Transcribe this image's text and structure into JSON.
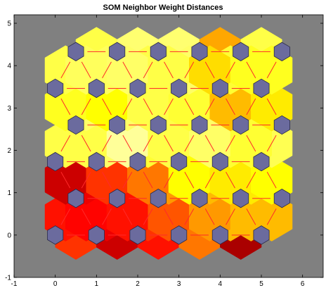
{
  "chart_data": {
    "type": "heatmap",
    "subtype": "som-neighbor-distances",
    "title": "SOM Neighbor Weight Distances",
    "xlabel": "",
    "ylabel": "",
    "xlim": [
      -1,
      6.5
    ],
    "ylim": [
      -1,
      5.2
    ],
    "xticks": [
      -1,
      0,
      1,
      2,
      3,
      4,
      5,
      6
    ],
    "yticks": [
      -1,
      0,
      1,
      2,
      3,
      4,
      5
    ],
    "grid": false,
    "colors": {
      "background": "#808080",
      "neuron": "#6b6b9e",
      "edge": "#ff2a2a",
      "colormap": "hot"
    },
    "grid_size": [
      6,
      5
    ],
    "neuron_rows": [
      {
        "y": 0,
        "x": [
          0,
          1,
          2,
          3,
          4,
          5
        ]
      },
      {
        "y": 0.866,
        "x": [
          0.5,
          1.5,
          2.5,
          3.5,
          4.5,
          5.5
        ]
      },
      {
        "y": 1.732,
        "x": [
          0,
          1,
          2,
          3,
          4,
          5
        ]
      },
      {
        "y": 2.598,
        "x": [
          0.5,
          1.5,
          2.5,
          3.5,
          4.5,
          5.5
        ]
      },
      {
        "y": 3.464,
        "x": [
          0,
          1,
          2,
          3,
          4,
          5
        ]
      },
      {
        "y": 4.33,
        "x": [
          0.5,
          1.5,
          2.5,
          3.5,
          4.5,
          5.5
        ]
      }
    ],
    "edge_level_scale": "0 = black (largest distance), 1 = white (smallest distance)",
    "horizontal_edges": [
      [
        0.45,
        0.3,
        0.4,
        0.55,
        0.25
      ],
      [
        0.35,
        0.55,
        0.6,
        0.7,
        0.75
      ],
      [
        0.75,
        0.78,
        0.82,
        0.78,
        0.8
      ],
      [
        0.8,
        0.78,
        0.75,
        0.8,
        0.83
      ],
      [
        0.73,
        0.85,
        0.88,
        0.8,
        0.75
      ],
      [
        0.82,
        0.86,
        0.86,
        0.62,
        0.82
      ]
    ],
    "up_edges": [
      [
        0.4,
        0.35,
        0.45,
        0.55,
        0.65,
        0.65
      ],
      [
        0.35,
        0.4,
        0.6,
        0.65,
        0.72,
        0.6
      ],
      [
        0.82,
        0.85,
        0.8,
        0.75,
        0.8,
        0.83
      ],
      [
        0.85,
        0.85,
        0.82,
        0.85,
        0.8,
        0.6
      ],
      [
        0.82,
        0.84,
        0.82,
        0.85,
        0.8,
        0.78
      ]
    ],
    "down_edges": [
      [
        0.35,
        0.38,
        0.4,
        0.5,
        0.6,
        0.65
      ],
      [
        0.3,
        0.45,
        0.55,
        0.75,
        0.72,
        0.75
      ],
      [
        0.8,
        0.82,
        0.9,
        0.82,
        0.85,
        0.8
      ],
      [
        0.78,
        0.75,
        0.82,
        0.8,
        0.65,
        0.72
      ],
      [
        0.82,
        0.84,
        0.85,
        0.82,
        0.7,
        0.78
      ]
    ]
  }
}
